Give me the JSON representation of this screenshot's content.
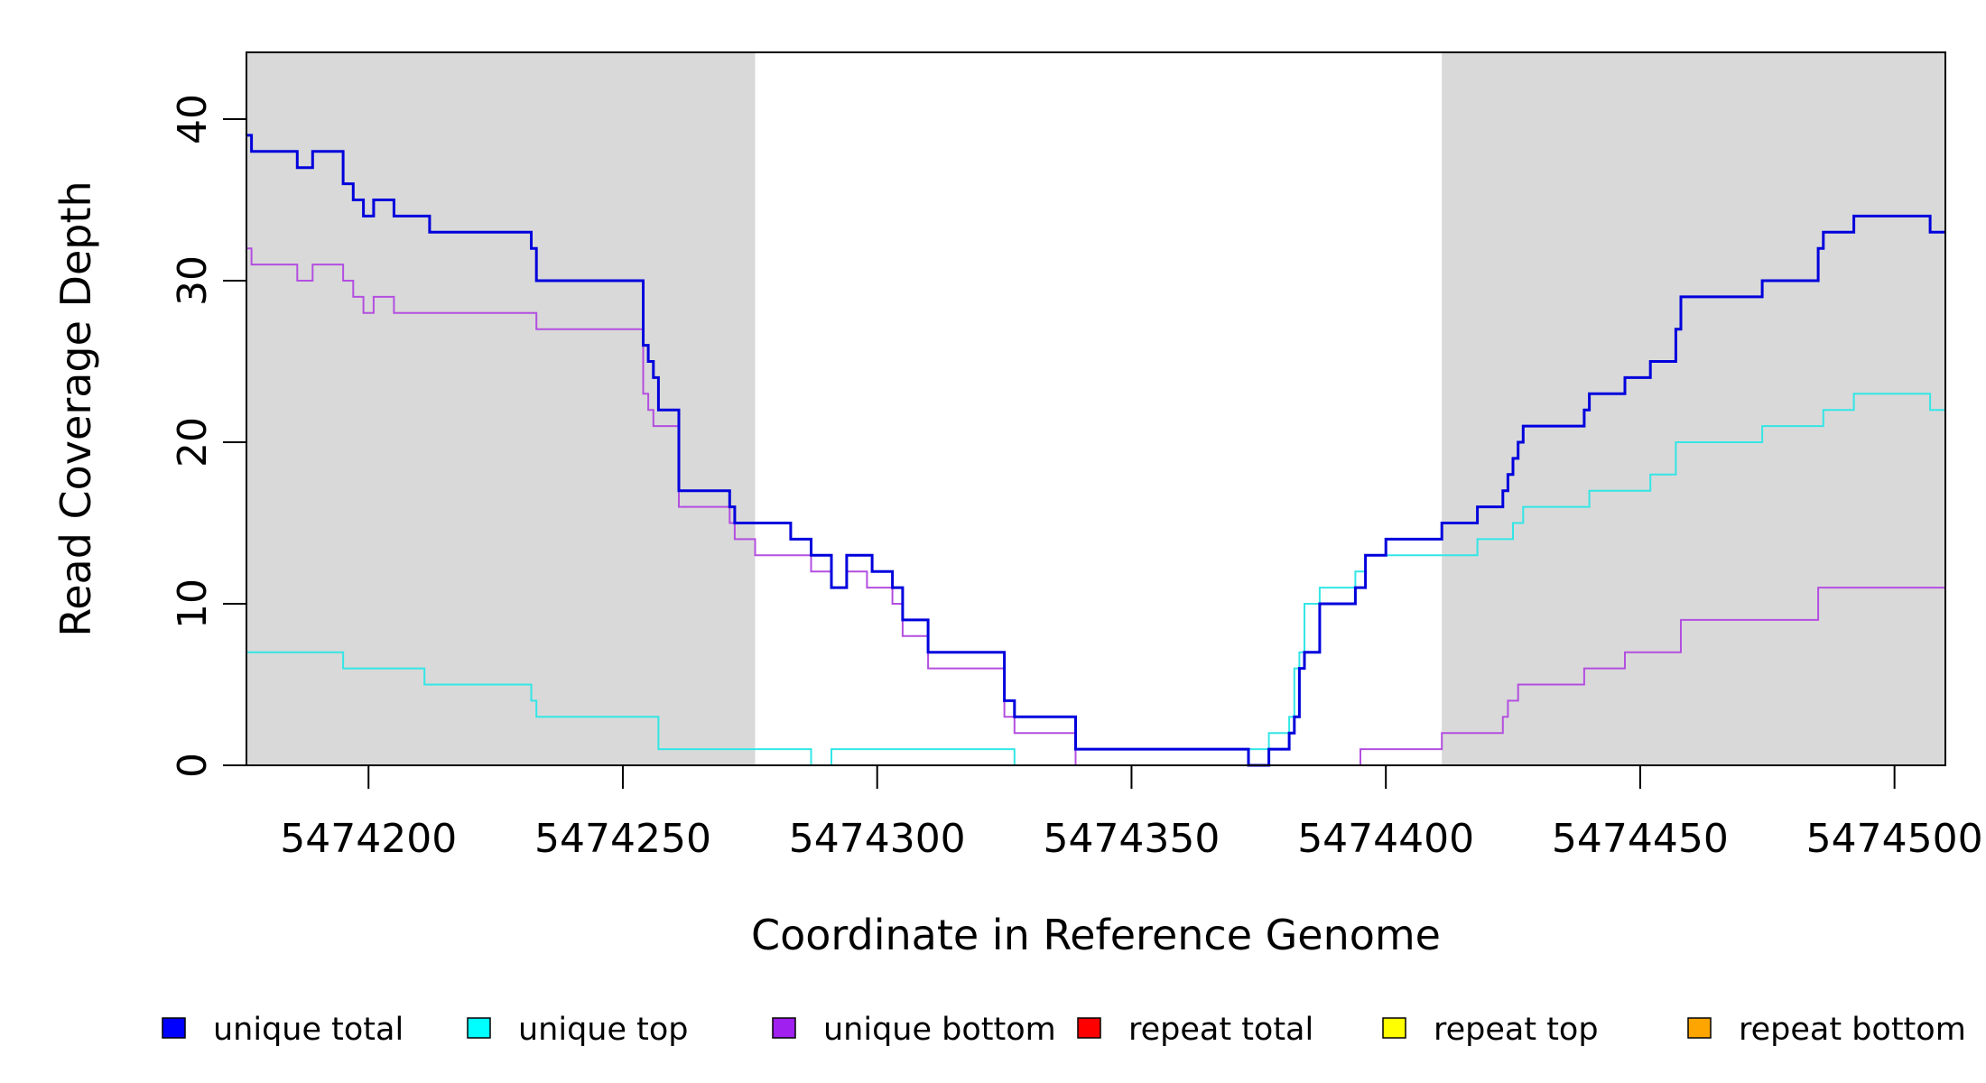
{
  "chart_data": {
    "type": "line",
    "xlabel": "Coordinate in Reference Genome",
    "ylabel": "Read Coverage Depth",
    "xlim": [
      5474176,
      5474510
    ],
    "ylim": [
      0,
      44
    ],
    "x_ticks": [
      5474200,
      5474250,
      5474300,
      5474350,
      5474400,
      5474450,
      5474500
    ],
    "x_tick_labels": [
      "5474200",
      "5474250",
      "5474300",
      "5474350",
      "5474400",
      "5474450",
      "5474500"
    ],
    "y_ticks": [
      0,
      10,
      20,
      30,
      40
    ],
    "y_tick_labels": [
      "0",
      "10",
      "20",
      "30",
      "40"
    ],
    "shaded_regions": [
      {
        "x0": 5474176,
        "x1": 5474276,
        "color": "#d9d9d9"
      },
      {
        "x0": 5474411,
        "x1": 5474510,
        "color": "#d9d9d9"
      }
    ],
    "legend_position": "bottom",
    "series": [
      {
        "name": "unique total",
        "color": "#0000ff",
        "line_color": "#0000dd",
        "x": [
          5474176,
          5474177,
          5474186,
          5474189,
          5474195,
          5474197,
          5474199,
          5474201,
          5474205,
          5474212,
          5474217,
          5474232,
          5474233,
          5474254,
          5474255,
          5474256,
          5474257,
          5474261,
          5474271,
          5474272,
          5474276,
          5474283,
          5474287,
          5474291,
          5474294,
          5474299,
          5474303,
          5474305,
          5474310,
          5474325,
          5474327,
          5474339,
          5474373,
          5474377,
          5474381,
          5474382,
          5474383,
          5474384,
          5474387,
          5474394,
          5474396,
          5474400,
          5474411,
          5474418,
          5474423,
          5474424,
          5474425,
          5474426,
          5474427,
          5474439,
          5474440,
          5474447,
          5474452,
          5474457,
          5474458,
          5474474,
          5474485,
          5474486,
          5474492,
          5474507,
          5474510
        ],
        "y": [
          39,
          38,
          37,
          38,
          36,
          35,
          34,
          35,
          34,
          33,
          33,
          32,
          30,
          26,
          25,
          24,
          22,
          17,
          16,
          15,
          15,
          14,
          13,
          11,
          13,
          12,
          11,
          9,
          7,
          4,
          3,
          1,
          0,
          1,
          2,
          3,
          6,
          7,
          10,
          11,
          13,
          14,
          15,
          16,
          17,
          18,
          19,
          20,
          21,
          22,
          23,
          24,
          25,
          27,
          29,
          30,
          32,
          33,
          34,
          33,
          33
        ]
      },
      {
        "name": "unique top",
        "color": "#00ffff",
        "line_color": "#33e6e6",
        "x": [
          5474176,
          5474195,
          5474211,
          5474232,
          5474233,
          5474257,
          5474287,
          5474291,
          5474327,
          5474339,
          5474373,
          5474377,
          5474381,
          5474382,
          5474383,
          5474384,
          5474387,
          5474394,
          5474396,
          5474400,
          5474411,
          5474418,
          5474425,
          5474427,
          5474440,
          5474452,
          5474457,
          5474474,
          5474486,
          5474492,
          5474507,
          5474510
        ],
        "y": [
          7,
          6,
          5,
          4,
          3,
          1,
          0,
          1,
          0,
          0,
          1,
          2,
          3,
          6,
          7,
          10,
          11,
          12,
          13,
          13,
          13,
          14,
          15,
          16,
          17,
          18,
          20,
          21,
          22,
          23,
          22,
          22
        ]
      },
      {
        "name": "unique bottom",
        "color": "#a020f0",
        "line_color": "#b34fe0",
        "x": [
          5474176,
          5474177,
          5474186,
          5474189,
          5474195,
          5474197,
          5474199,
          5474201,
          5474205,
          5474212,
          5474217,
          5474233,
          5474254,
          5474255,
          5474256,
          5474261,
          5474271,
          5474272,
          5474276,
          5474283,
          5474287,
          5474291,
          5474294,
          5474298,
          5474303,
          5474305,
          5474310,
          5474325,
          5474327,
          5474339,
          5474395,
          5474411,
          5474423,
          5474424,
          5474426,
          5474439,
          5474447,
          5474458,
          5474474,
          5474485,
          5474510
        ],
        "y": [
          32,
          31,
          30,
          31,
          30,
          29,
          28,
          29,
          28,
          28,
          28,
          27,
          23,
          22,
          21,
          16,
          15,
          14,
          13,
          13,
          12,
          11,
          12,
          11,
          10,
          8,
          6,
          3,
          2,
          0,
          1,
          2,
          3,
          4,
          5,
          6,
          7,
          9,
          9,
          11,
          11
        ]
      },
      {
        "name": "repeat total",
        "color": "#ff0000",
        "line_color": "#ff0000",
        "x": [
          5474176,
          5474510
        ],
        "y": [
          0,
          0
        ]
      },
      {
        "name": "repeat top",
        "color": "#ffff00",
        "line_color": "#ffff00",
        "x": [
          5474176,
          5474510
        ],
        "y": [
          0,
          0
        ]
      },
      {
        "name": "repeat bottom",
        "color": "#ffa500",
        "line_color": "#ffa500",
        "x": [
          5474176,
          5474510
        ],
        "y": [
          0,
          0
        ]
      }
    ]
  }
}
